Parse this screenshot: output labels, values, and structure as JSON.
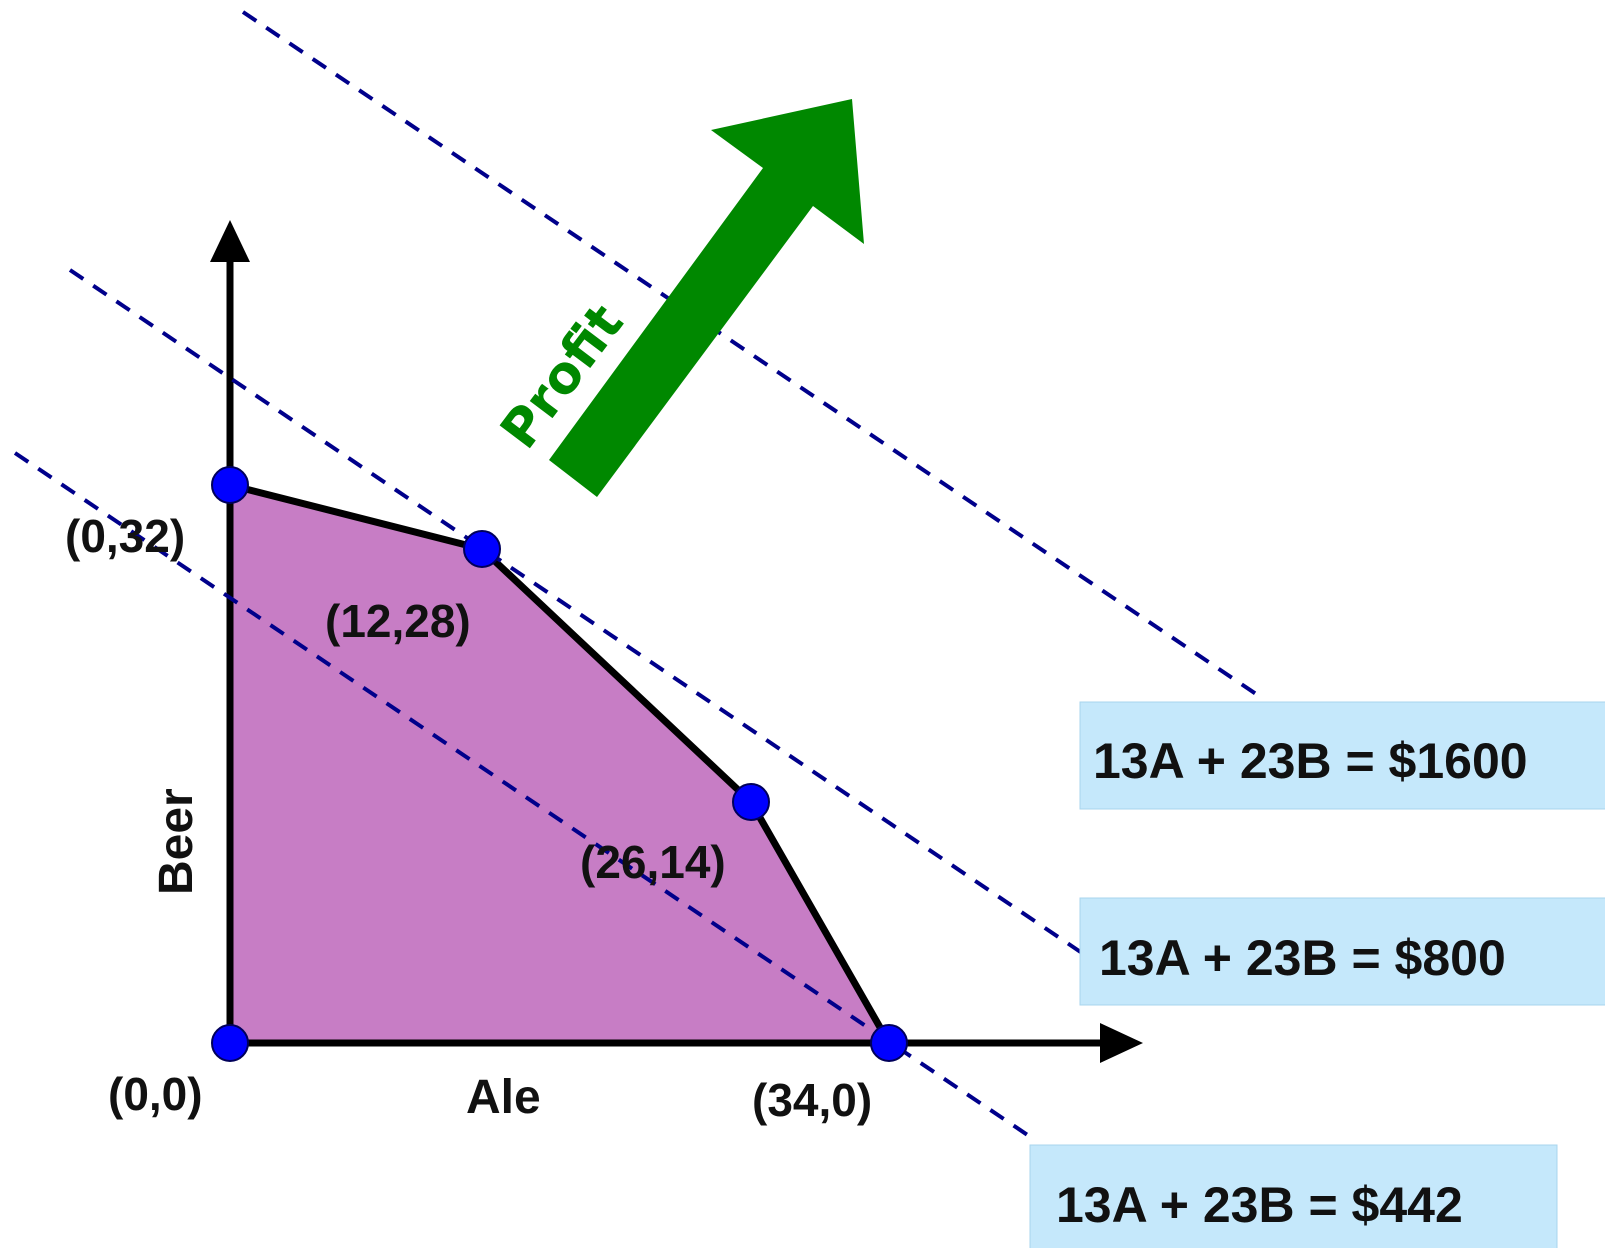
{
  "axes": {
    "x_label": "Ale",
    "y_label": "Beer"
  },
  "colors": {
    "region_fill": "#c77dc5",
    "outline": "#000000",
    "vertex_fill": "#0000ff",
    "isoprofit_line": "#00008b",
    "profit_arrow": "#008800",
    "equation_box": "#c5e8fb"
  },
  "feasible_region": {
    "vertices": [
      {
        "a": 0,
        "b": 0,
        "label": "(0,0)"
      },
      {
        "a": 0,
        "b": 32,
        "label": "(0,32)"
      },
      {
        "a": 12,
        "b": 28,
        "label": "(12,28)"
      },
      {
        "a": 26,
        "b": 14,
        "label": "(26,14)"
      },
      {
        "a": 34,
        "b": 0,
        "label": "(34,0)"
      }
    ]
  },
  "isoprofit_lines": [
    {
      "equation": "13A + 23B = $442",
      "profit": 442
    },
    {
      "equation": "13A + 23B = $800",
      "profit": 800
    },
    {
      "equation": "13A + 23B = $1600",
      "profit": 1600
    }
  ],
  "profit_arrow": {
    "label": "Profit",
    "direction": "increasing"
  }
}
